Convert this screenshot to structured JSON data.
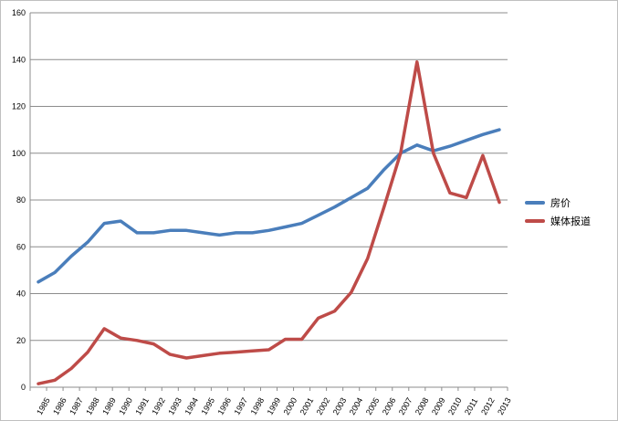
{
  "chart_data": {
    "type": "line",
    "x": [
      "1985",
      "1986",
      "1987",
      "1988",
      "1989",
      "1990",
      "1991",
      "1992",
      "1993",
      "1994",
      "1995",
      "1996",
      "1997",
      "1998",
      "1999",
      "2000",
      "2001",
      "2002",
      "2003",
      "2004",
      "2005",
      "2006",
      "2007",
      "2008",
      "2009",
      "2010",
      "2011",
      "2012",
      "2013"
    ],
    "series": [
      {
        "name": "房价",
        "color": "#4a7ebb",
        "values": [
          45,
          49,
          56,
          62,
          70,
          71,
          66,
          66,
          67,
          67,
          66,
          65,
          66,
          66,
          67,
          68.5,
          70,
          73.5,
          77,
          81,
          85,
          93,
          100,
          103.5,
          101,
          103,
          105.5,
          108,
          110
        ]
      },
      {
        "name": "媒体报道",
        "color": "#be4b48",
        "values": [
          1.5,
          3,
          8,
          15,
          25,
          21,
          20,
          18.5,
          14,
          12.5,
          13.5,
          14.5,
          15,
          15.5,
          16,
          20.5,
          20.5,
          29.5,
          32.5,
          40.5,
          55,
          77,
          100,
          139,
          100,
          83,
          81,
          99,
          79
        ]
      }
    ],
    "ylim": [
      0,
      160
    ],
    "yticks": [
      "0",
      "20",
      "40",
      "60",
      "80",
      "100",
      "120",
      "140",
      "160"
    ],
    "grid": "horizontal",
    "legend_position": "right"
  }
}
